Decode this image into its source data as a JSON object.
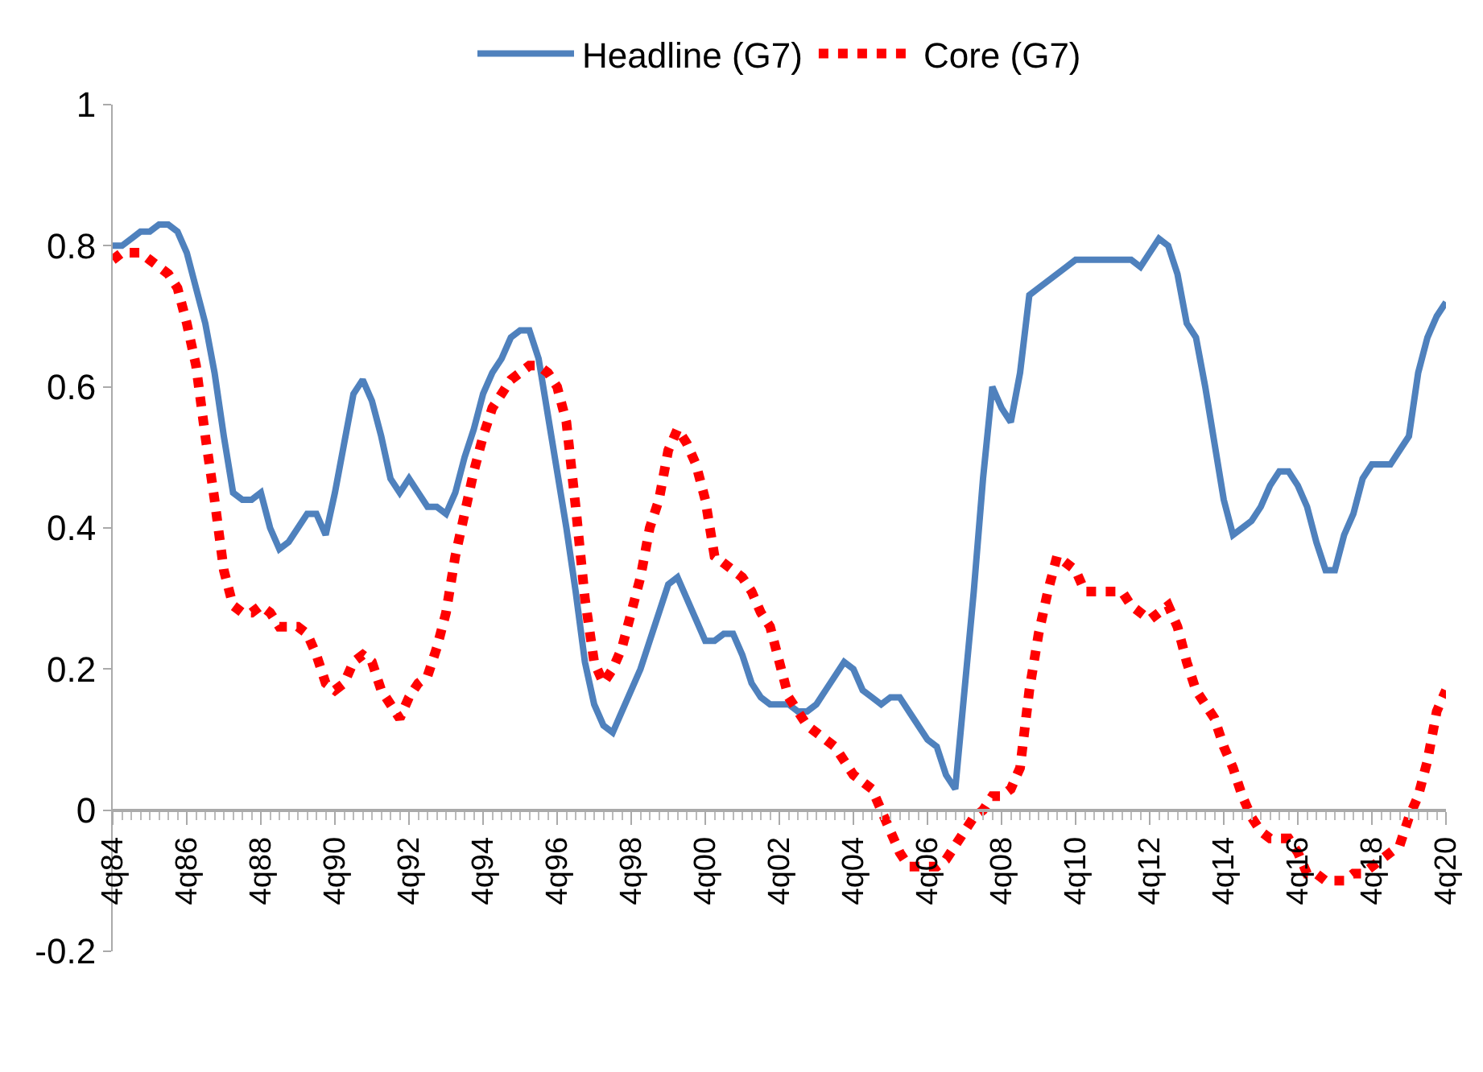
{
  "chart_data": {
    "type": "line",
    "categories": [
      "4q84",
      null,
      null,
      null,
      null,
      null,
      null,
      null,
      "4q86",
      null,
      null,
      null,
      null,
      null,
      null,
      null,
      "4q88",
      null,
      null,
      null,
      null,
      null,
      null,
      null,
      "4q90",
      null,
      null,
      null,
      null,
      null,
      null,
      null,
      "4q92",
      null,
      null,
      null,
      null,
      null,
      null,
      null,
      "4q94",
      null,
      null,
      null,
      null,
      null,
      null,
      null,
      "4q96",
      null,
      null,
      null,
      null,
      null,
      null,
      null,
      "4q98",
      null,
      null,
      null,
      null,
      null,
      null,
      null,
      "4q00",
      null,
      null,
      null,
      null,
      null,
      null,
      null,
      "4q02",
      null,
      null,
      null,
      null,
      null,
      null,
      null,
      "4q04",
      null,
      null,
      null,
      null,
      null,
      null,
      null,
      "4q06",
      null,
      null,
      null,
      null,
      null,
      null,
      null,
      "4q08",
      null,
      null,
      null,
      null,
      null,
      null,
      null,
      "4q10",
      null,
      null,
      null,
      null,
      null,
      null,
      null,
      "4q12",
      null,
      null,
      null,
      null,
      null,
      null,
      null,
      "4q14",
      null,
      null,
      null,
      null,
      null,
      null,
      null,
      "4q16",
      null,
      null,
      null,
      null,
      null,
      null,
      null,
      "4q18",
      null,
      null,
      null,
      null,
      null,
      null,
      null,
      "4q20"
    ],
    "ylim": [
      -0.2,
      1
    ],
    "yticks": [
      -0.2,
      0,
      0.2,
      0.4,
      0.6,
      0.8,
      1
    ],
    "legend": "top",
    "marker": "none",
    "series": [
      {
        "name": "Headline (G7)",
        "color": "#4f81bd",
        "line_style": "solid",
        "values": [
          0.8,
          0.8,
          0.81,
          0.82,
          0.82,
          0.83,
          0.83,
          0.82,
          0.79,
          0.74,
          0.69,
          0.62,
          0.53,
          0.45,
          0.44,
          0.44,
          0.45,
          0.4,
          0.37,
          0.38,
          0.4,
          0.42,
          0.42,
          0.39,
          0.45,
          0.52,
          0.59,
          0.61,
          0.58,
          0.53,
          0.47,
          0.45,
          0.47,
          0.45,
          0.43,
          0.43,
          0.42,
          0.45,
          0.5,
          0.54,
          0.59,
          0.62,
          0.64,
          0.67,
          0.68,
          0.68,
          0.64,
          0.56,
          0.48,
          0.4,
          0.31,
          0.21,
          0.15,
          0.12,
          0.11,
          0.14,
          0.17,
          0.2,
          0.24,
          0.28,
          0.32,
          0.33,
          0.3,
          0.27,
          0.24,
          0.24,
          0.25,
          0.25,
          0.22,
          0.18,
          0.16,
          0.15,
          0.15,
          0.15,
          0.14,
          0.14,
          0.15,
          0.17,
          0.19,
          0.21,
          0.2,
          0.17,
          0.16,
          0.15,
          0.16,
          0.16,
          0.14,
          0.12,
          0.1,
          0.09,
          0.05,
          0.03,
          0.17,
          0.31,
          0.47,
          0.6,
          0.57,
          0.55,
          0.62,
          0.73,
          0.74,
          0.75,
          0.76,
          0.77,
          0.78,
          0.78,
          0.78,
          0.78,
          0.78,
          0.78,
          0.78,
          0.77,
          0.79,
          0.81,
          0.8,
          0.76,
          0.69,
          0.67,
          0.6,
          0.52,
          0.44,
          0.39,
          0.4,
          0.41,
          0.43,
          0.46,
          0.48,
          0.48,
          0.46,
          0.43,
          0.38,
          0.34,
          0.34,
          0.39,
          0.42,
          0.47,
          0.49,
          0.49,
          0.49,
          0.51,
          0.53,
          0.62,
          0.67,
          0.7,
          0.72
        ]
      },
      {
        "name": "Core (G7)",
        "color": "#ff0000",
        "line_style": "dotted",
        "values": [
          0.78,
          0.79,
          0.79,
          0.79,
          0.78,
          0.77,
          0.76,
          0.74,
          0.69,
          0.63,
          0.53,
          0.44,
          0.34,
          0.29,
          0.28,
          0.28,
          0.29,
          0.28,
          0.26,
          0.26,
          0.26,
          0.25,
          0.22,
          0.18,
          0.17,
          0.18,
          0.21,
          0.22,
          0.21,
          0.17,
          0.15,
          0.13,
          0.16,
          0.18,
          0.19,
          0.23,
          0.28,
          0.36,
          0.42,
          0.48,
          0.53,
          0.57,
          0.59,
          0.61,
          0.62,
          0.63,
          0.63,
          0.62,
          0.6,
          0.55,
          0.43,
          0.3,
          0.21,
          0.18,
          0.2,
          0.23,
          0.28,
          0.33,
          0.4,
          0.44,
          0.51,
          0.54,
          0.52,
          0.49,
          0.44,
          0.36,
          0.35,
          0.34,
          0.33,
          0.31,
          0.28,
          0.26,
          0.21,
          0.16,
          0.14,
          0.12,
          0.11,
          0.1,
          0.09,
          0.07,
          0.05,
          0.04,
          0.03,
          0.0,
          -0.03,
          -0.06,
          -0.08,
          -0.08,
          -0.08,
          -0.08,
          -0.07,
          -0.05,
          -0.03,
          -0.01,
          0.0,
          0.02,
          0.02,
          0.03,
          0.06,
          0.17,
          0.25,
          0.31,
          0.36,
          0.35,
          0.34,
          0.31,
          0.31,
          0.31,
          0.31,
          0.31,
          0.29,
          0.28,
          0.27,
          0.28,
          0.29,
          0.26,
          0.21,
          0.17,
          0.15,
          0.13,
          0.09,
          0.06,
          0.02,
          -0.01,
          -0.03,
          -0.04,
          -0.04,
          -0.04,
          -0.06,
          -0.09,
          -0.09,
          -0.1,
          -0.1,
          -0.1,
          -0.09,
          -0.09,
          -0.08,
          -0.07,
          -0.06,
          -0.05,
          -0.01,
          0.02,
          0.07,
          0.14,
          0.17
        ]
      }
    ]
  }
}
